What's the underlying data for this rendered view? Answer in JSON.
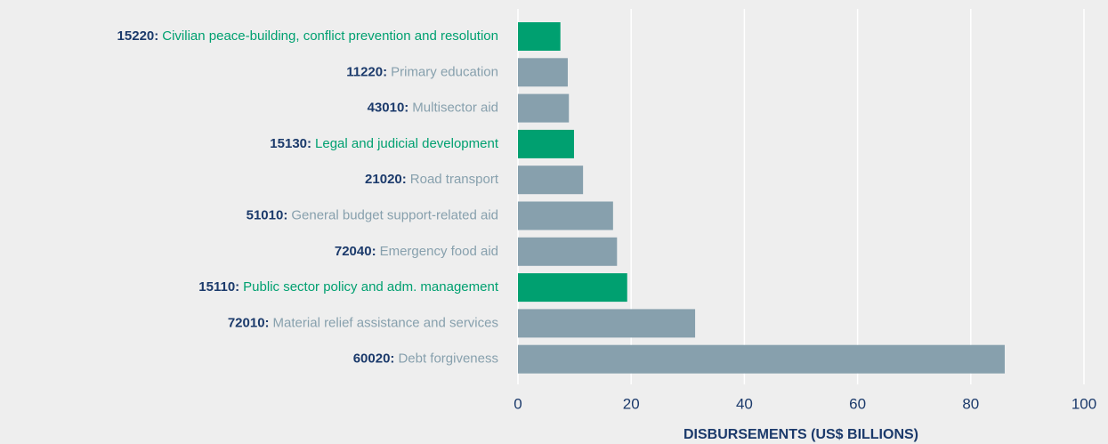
{
  "chart_data": {
    "type": "barh",
    "codes": [
      "15220:",
      "11220:",
      "43010:",
      "15130:",
      "21020:",
      "51010:",
      "72040:",
      "15110:",
      "72010:",
      "60020:"
    ],
    "categories": [
      "Civilian peace-building, conflict prevention and resolution",
      "Primary education",
      "Multisector aid",
      "Legal and judicial development",
      "Road transport",
      "General budget support-related aid",
      "Emergency food aid",
      "Public sector policy and adm. management",
      "Material relief assistance and services",
      "Debt forgiveness"
    ],
    "values": [
      7.5,
      8.8,
      9.0,
      9.9,
      11.5,
      16.8,
      17.5,
      19.3,
      31.3,
      86.0
    ],
    "colors": [
      "#00a070",
      "#87a0ad",
      "#87a0ad",
      "#00a070",
      "#87a0ad",
      "#87a0ad",
      "#87a0ad",
      "#00a070",
      "#87a0ad",
      "#87a0ad"
    ],
    "code_color": "#1b3a6b",
    "x_label": "DISBURSEMENTS (US$ BILLIONS)",
    "xlim": [
      0,
      100
    ],
    "xticks": [
      0,
      20,
      40,
      60,
      80,
      100
    ],
    "grid": true
  }
}
